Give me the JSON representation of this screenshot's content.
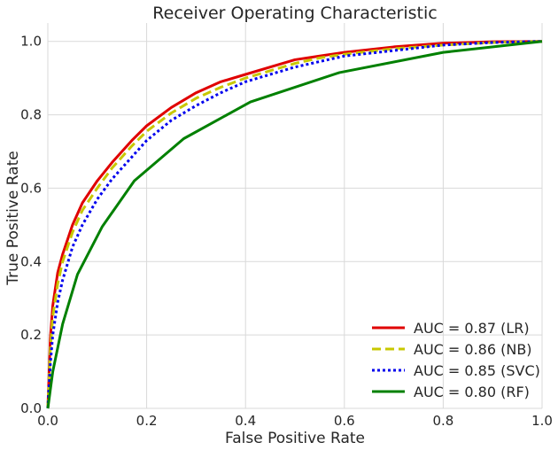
{
  "chart_data": {
    "type": "line",
    "title": "Receiver Operating Characteristic",
    "xlabel": "False Positive Rate",
    "ylabel": "True Positive Rate",
    "xlim": [
      0,
      1
    ],
    "ylim": [
      0,
      1.05
    ],
    "xticks": [
      0.0,
      0.2,
      0.4,
      0.6,
      0.8,
      1.0
    ],
    "yticks": [
      0.0,
      0.2,
      0.4,
      0.6,
      0.8,
      1.0
    ],
    "xtick_labels": [
      "0.0",
      "0.2",
      "0.4",
      "0.6",
      "0.8",
      "1.0"
    ],
    "ytick_labels": [
      "0.0",
      "0.2",
      "0.4",
      "0.6",
      "0.8",
      "1.0"
    ],
    "grid": true,
    "legend_position": "lower-right",
    "series": [
      {
        "name": "AUC = 0.87 (LR)",
        "color": "#e00000",
        "style": "solid",
        "x": [
          0,
          0.005,
          0.01,
          0.02,
          0.03,
          0.05,
          0.07,
          0.1,
          0.13,
          0.17,
          0.2,
          0.25,
          0.3,
          0.35,
          0.4,
          0.45,
          0.5,
          0.55,
          0.6,
          0.7,
          0.8,
          0.9,
          1.0
        ],
        "y": [
          0,
          0.19,
          0.28,
          0.37,
          0.42,
          0.5,
          0.56,
          0.62,
          0.67,
          0.73,
          0.77,
          0.82,
          0.86,
          0.89,
          0.91,
          0.93,
          0.95,
          0.96,
          0.97,
          0.985,
          0.995,
          0.999,
          1.0
        ]
      },
      {
        "name": "AUC = 0.86 (NB)",
        "color": "#c8c800",
        "style": "dashed",
        "x": [
          0,
          0.005,
          0.01,
          0.02,
          0.03,
          0.05,
          0.07,
          0.1,
          0.13,
          0.17,
          0.2,
          0.25,
          0.3,
          0.35,
          0.4,
          0.45,
          0.5,
          0.55,
          0.6,
          0.7,
          0.8,
          0.9,
          1.0
        ],
        "y": [
          0,
          0.16,
          0.25,
          0.34,
          0.4,
          0.48,
          0.54,
          0.6,
          0.655,
          0.715,
          0.755,
          0.805,
          0.845,
          0.875,
          0.9,
          0.92,
          0.94,
          0.955,
          0.965,
          0.98,
          0.99,
          0.997,
          1.0
        ]
      },
      {
        "name": "AUC = 0.85 (SVC)",
        "color": "#0000ee",
        "style": "dotted",
        "x": [
          0,
          0.005,
          0.01,
          0.02,
          0.03,
          0.05,
          0.07,
          0.1,
          0.13,
          0.17,
          0.2,
          0.25,
          0.3,
          0.35,
          0.4,
          0.45,
          0.5,
          0.55,
          0.6,
          0.7,
          0.8,
          0.9,
          1.0
        ],
        "y": [
          0,
          0.12,
          0.2,
          0.29,
          0.35,
          0.44,
          0.5,
          0.57,
          0.625,
          0.685,
          0.73,
          0.785,
          0.825,
          0.86,
          0.89,
          0.91,
          0.93,
          0.945,
          0.96,
          0.975,
          0.99,
          0.997,
          1.0
        ]
      },
      {
        "name": "AUC = 0.80 (RF)",
        "color": "#008000",
        "style": "solid",
        "x": [
          0,
          0.005,
          0.01,
          0.03,
          0.06,
          0.11,
          0.175,
          0.275,
          0.41,
          0.59,
          0.8,
          1.0
        ],
        "y": [
          0,
          0.05,
          0.1,
          0.23,
          0.365,
          0.495,
          0.62,
          0.735,
          0.835,
          0.915,
          0.97,
          1.0
        ]
      }
    ]
  }
}
